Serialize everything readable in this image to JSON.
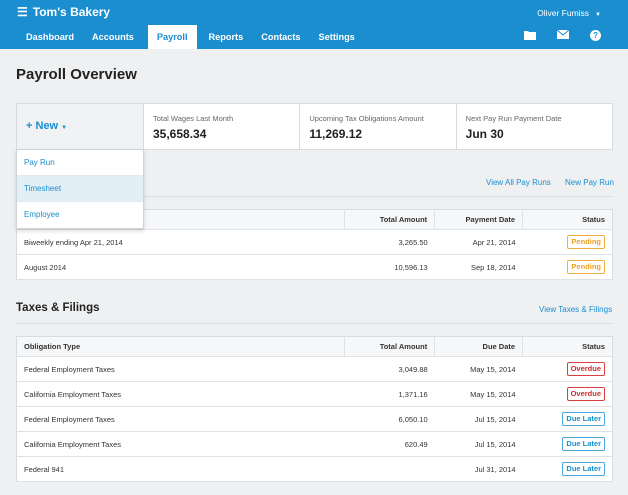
{
  "header": {
    "app_name": "Tom's Bakery",
    "user_name": "Oliver Fumiss",
    "nav": [
      "Dashboard",
      "Accounts",
      "Payroll",
      "Reports",
      "Contacts",
      "Settings"
    ],
    "active_tab": "Payroll",
    "icons": [
      "folder-icon",
      "mail-icon",
      "help-icon"
    ]
  },
  "page": {
    "title": "Payroll Overview"
  },
  "summary": {
    "new_label": "+ New",
    "stats": [
      {
        "label": "Total Wages Last Month",
        "value": "35,658.34"
      },
      {
        "label": "Upcoming Tax Obligations Amount",
        "value": "11,269.12"
      },
      {
        "label": "Next Pay Run Payment Date",
        "value": "Jun 30"
      }
    ]
  },
  "new_menu": {
    "items": [
      "Pay Run",
      "Timesheet",
      "Employee"
    ],
    "highlighted": "Timesheet"
  },
  "payruns": {
    "view_all": "View All Pay Runs",
    "new_pay_run": "New Pay Run",
    "columns": [
      "Total Amount",
      "Payment Date",
      "Status"
    ],
    "rows": [
      {
        "name": "Biweekly ending Apr 21, 2014",
        "amount": "3,265.50",
        "date": "Apr 21, 2014",
        "status": "Pending"
      },
      {
        "name": "August 2014",
        "amount": "10,596.13",
        "date": "Sep 18, 2014",
        "status": "Pending"
      }
    ]
  },
  "taxes": {
    "title": "Taxes & Filings",
    "view_link": "View Taxes & Filings",
    "columns": [
      "Obligation Type",
      "Total Amount",
      "Due Date",
      "Status"
    ],
    "rows": [
      {
        "type": "Federal Employment Taxes",
        "amount": "3,049.88",
        "date": "May 15, 2014",
        "status": "Overdue"
      },
      {
        "type": "California Employment Taxes",
        "amount": "1,371.16",
        "date": "May 15, 2014",
        "status": "Overdue"
      },
      {
        "type": "Federal Employment Taxes",
        "amount": "6,050.10",
        "date": "Jul 15, 2014",
        "status": "Due Later"
      },
      {
        "type": "California Employment Taxes",
        "amount": "620.49",
        "date": "Jul 15, 2014",
        "status": "Due Later"
      },
      {
        "type": "Federal 941",
        "amount": "",
        "date": "Jul 31, 2014",
        "status": "Due Later"
      }
    ]
  },
  "colors": {
    "brand": "#1b8ed0",
    "pending": "#f0a020",
    "overdue": "#d02c2c",
    "due_later": "#1b8ed0"
  }
}
